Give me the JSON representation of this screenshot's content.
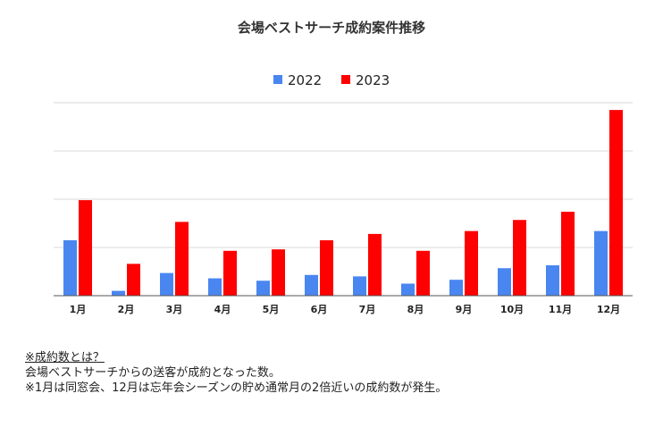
{
  "chart_data": {
    "type": "bar",
    "title": "会場ベストサーチ成約案件推移",
    "categories": [
      "1月",
      "2月",
      "3月",
      "4月",
      "5月",
      "6月",
      "7月",
      "8月",
      "9月",
      "10月",
      "11月",
      "12月"
    ],
    "series": [
      {
        "name": "2022",
        "color": "#4a86f0",
        "values": [
          11.5,
          1.0,
          4.7,
          3.6,
          3.1,
          4.3,
          4.0,
          2.5,
          3.3,
          5.7,
          6.3,
          13.4
        ]
      },
      {
        "name": "2023",
        "color": "#ff0000",
        "values": [
          19.8,
          6.6,
          15.3,
          9.3,
          9.6,
          11.5,
          12.8,
          9.3,
          13.4,
          15.7,
          17.4,
          38.5
        ]
      }
    ],
    "xlabel": "",
    "ylabel": "",
    "ylim": [
      0,
      40
    ],
    "y_ticks_shown": false,
    "grid": true,
    "legend_position": "top"
  },
  "notes": {
    "heading": "※成約数とは？",
    "line1": "会場ベストサーチからの送客が成約となった数。",
    "line2": "※1月は同窓会、12月は忘年会シーズンの貯め通常月の2倍近いの成約数が発生。"
  }
}
